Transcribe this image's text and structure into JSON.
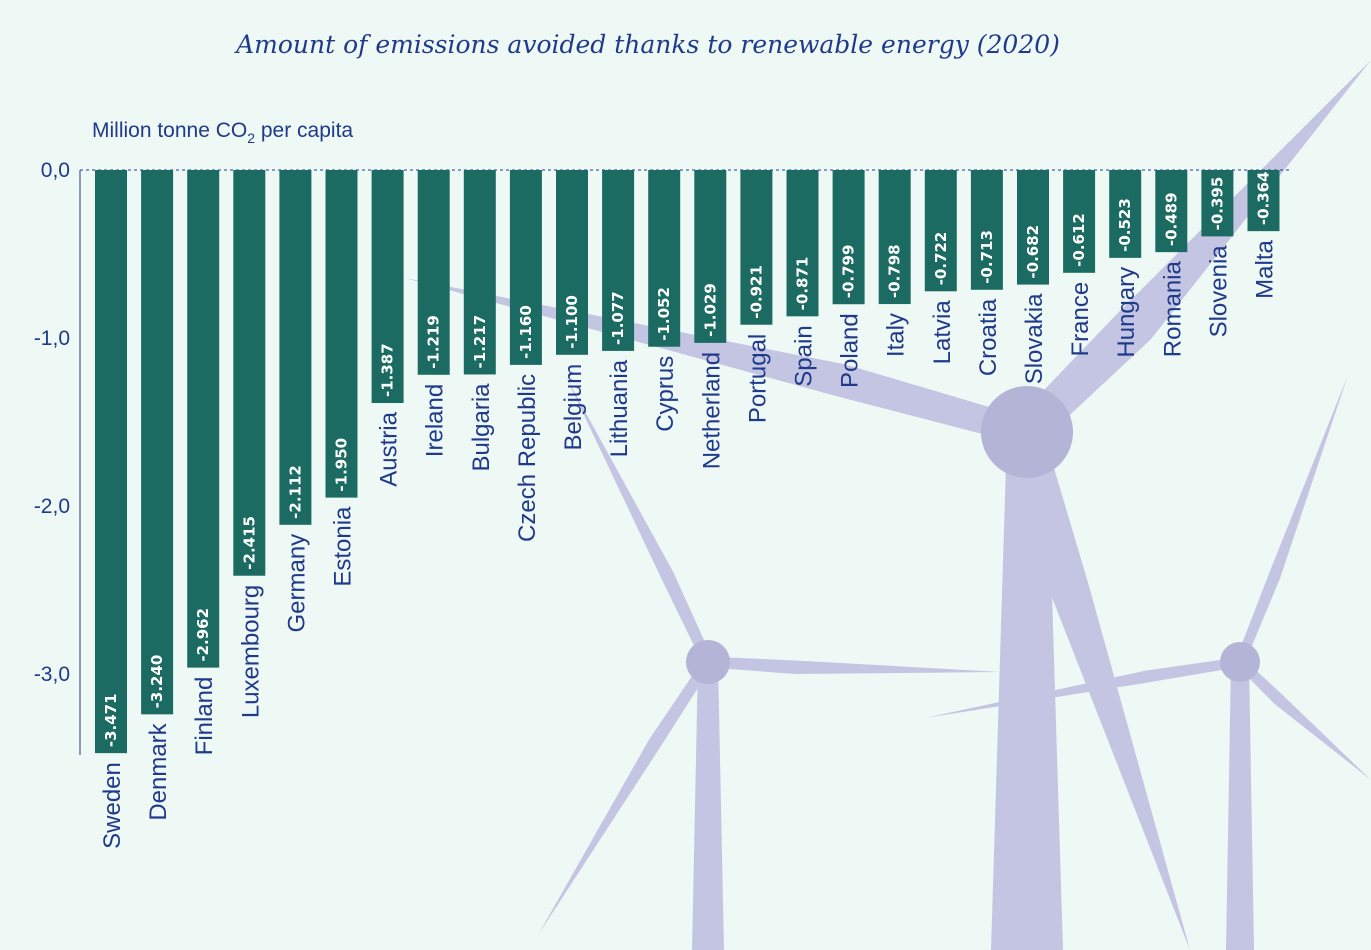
{
  "chart_data": {
    "type": "bar",
    "title": "Amount of emissions avoided thanks to renewable energy (2020)",
    "ylabel": "Million tonne CO2 per capita",
    "ylabel_parts": {
      "main": "Million tonne CO",
      "sub": "2",
      "rest": " per capita"
    },
    "ylim": [
      -3.5,
      0
    ],
    "yticks": [
      {
        "value": 0,
        "label": "0,0"
      },
      {
        "value": -1,
        "label": "-1,0"
      },
      {
        "value": -2,
        "label": "-2,0"
      },
      {
        "value": -3,
        "label": "-3,0"
      }
    ],
    "categories": [
      "Sweden",
      "Denmark",
      "Finland",
      "Luxembourg",
      "Germany",
      "Estonia",
      "Austria",
      "Ireland",
      "Bulgaria",
      "Czech Republic",
      "Belgium",
      "Lithuania",
      "Cyprus",
      "Netherland",
      "Portugal",
      "Spain",
      "Poland",
      "Italy",
      "Latvia",
      "Croatia",
      "Slovakia",
      "France",
      "Hungary",
      "Romania",
      "Slovenia",
      "Malta"
    ],
    "values": [
      -3.471,
      -3.24,
      -2.962,
      -2.415,
      -2.112,
      -1.95,
      -1.387,
      -1.219,
      -1.217,
      -1.16,
      -1.1,
      -1.077,
      -1.052,
      -1.029,
      -0.921,
      -0.871,
      -0.799,
      -0.798,
      -0.722,
      -0.713,
      -0.682,
      -0.612,
      -0.523,
      -0.489,
      -0.395,
      -0.364
    ],
    "value_labels": [
      "-3.471",
      "-3.240",
      "-2.962",
      "-2.415",
      "-2.112",
      "-1.950",
      "-1.387",
      "-1.219",
      "-1.217",
      "-1.160",
      "-1.100",
      "-1.077",
      "-1.052",
      "-1.029",
      "-0.921",
      "-0.871",
      "-0.799",
      "-0.798",
      "-0.722",
      "-0.713",
      "-0.682",
      "-0.612",
      "-0.523",
      "-0.489",
      "-0.395",
      "-0.364"
    ],
    "bar_color": "#1c6b62",
    "grid": false
  },
  "colors": {
    "background": "#eef8f5",
    "text": "#1f3a8a",
    "turbine": "#c4c5e2"
  }
}
